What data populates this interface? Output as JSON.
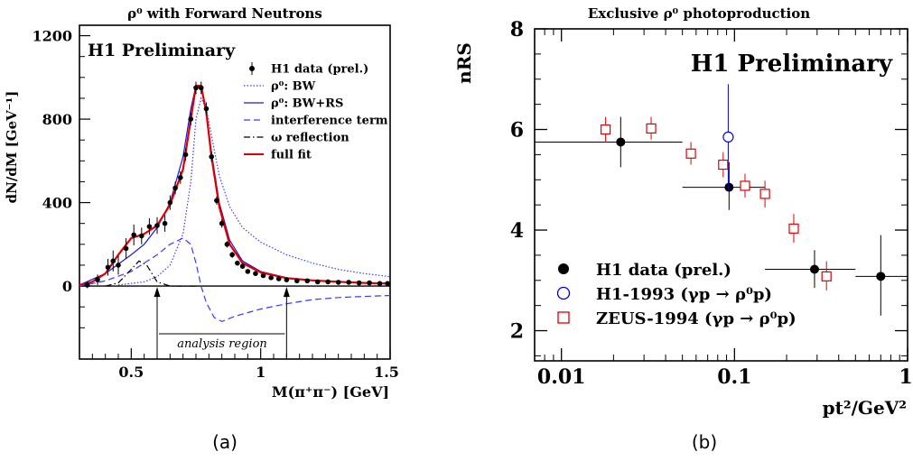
{
  "chart_data": [
    {
      "panel_label": "(a)",
      "type": "line",
      "title": "ρ⁰ with  Forward  Neutrons",
      "watermark": "H1 Preliminary",
      "xlabel": "M(π⁺π⁻) [GeV]",
      "ylabel": "dN/dM [GeV⁻¹]",
      "xlim": [
        0.3,
        1.5
      ],
      "ylim": [
        -350,
        1250
      ],
      "xticks": [
        0.5,
        1,
        1.5
      ],
      "xtick_labels": [
        "0.5",
        "1",
        "1.5"
      ],
      "yticks": [
        0,
        400,
        800,
        1200
      ],
      "ytick_labels": [
        "0",
        "400",
        "800",
        "1200"
      ],
      "annotation": "analysis region",
      "analysis_region": [
        0.6,
        1.1
      ],
      "legend_position": "top-right",
      "data_series": {
        "name": "H1 data (prel.)",
        "points": [
          {
            "x": 0.33,
            "y": 5,
            "err": 15
          },
          {
            "x": 0.37,
            "y": 30,
            "err": 25
          },
          {
            "x": 0.41,
            "y": 90,
            "err": 40
          },
          {
            "x": 0.43,
            "y": 120,
            "err": 50
          },
          {
            "x": 0.45,
            "y": 100,
            "err": 45
          },
          {
            "x": 0.48,
            "y": 180,
            "err": 50
          },
          {
            "x": 0.51,
            "y": 245,
            "err": 50
          },
          {
            "x": 0.54,
            "y": 240,
            "err": 40
          },
          {
            "x": 0.57,
            "y": 285,
            "err": 40
          },
          {
            "x": 0.6,
            "y": 290,
            "err": 40
          },
          {
            "x": 0.63,
            "y": 300,
            "err": 40
          },
          {
            "x": 0.65,
            "y": 400,
            "err": 35
          },
          {
            "x": 0.67,
            "y": 470,
            "err": 30
          },
          {
            "x": 0.69,
            "y": 520,
            "err": 30
          },
          {
            "x": 0.71,
            "y": 630,
            "err": 30
          },
          {
            "x": 0.73,
            "y": 800,
            "err": 30
          },
          {
            "x": 0.75,
            "y": 950,
            "err": 30
          },
          {
            "x": 0.77,
            "y": 950,
            "err": 30
          },
          {
            "x": 0.79,
            "y": 850,
            "err": 30
          },
          {
            "x": 0.81,
            "y": 620,
            "err": 25
          },
          {
            "x": 0.83,
            "y": 410,
            "err": 20
          },
          {
            "x": 0.85,
            "y": 300,
            "err": 20
          },
          {
            "x": 0.87,
            "y": 200,
            "err": 15
          },
          {
            "x": 0.89,
            "y": 150,
            "err": 15
          },
          {
            "x": 0.91,
            "y": 110,
            "err": 12
          },
          {
            "x": 0.93,
            "y": 95,
            "err": 12
          },
          {
            "x": 0.95,
            "y": 70,
            "err": 10
          },
          {
            "x": 0.98,
            "y": 60,
            "err": 10
          },
          {
            "x": 1.01,
            "y": 50,
            "err": 10
          },
          {
            "x": 1.04,
            "y": 40,
            "err": 8
          },
          {
            "x": 1.07,
            "y": 35,
            "err": 8
          },
          {
            "x": 1.1,
            "y": 30,
            "err": 8
          },
          {
            "x": 1.14,
            "y": 25,
            "err": 8
          },
          {
            "x": 1.18,
            "y": 25,
            "err": 8
          },
          {
            "x": 1.22,
            "y": 20,
            "err": 8
          },
          {
            "x": 1.26,
            "y": 20,
            "err": 8
          },
          {
            "x": 1.3,
            "y": 18,
            "err": 8
          },
          {
            "x": 1.34,
            "y": 18,
            "err": 8
          },
          {
            "x": 1.38,
            "y": 15,
            "err": 8
          },
          {
            "x": 1.42,
            "y": 15,
            "err": 8
          },
          {
            "x": 1.46,
            "y": 12,
            "err": 8
          },
          {
            "x": 1.49,
            "y": 12,
            "err": 8
          }
        ]
      },
      "curves": [
        {
          "name": "ρ⁰: BW",
          "style": "dotted",
          "color": "#3a3aff",
          "points": [
            [
              0.45,
              5
            ],
            [
              0.55,
              20
            ],
            [
              0.6,
              45
            ],
            [
              0.65,
              100
            ],
            [
              0.7,
              250
            ],
            [
              0.73,
              500
            ],
            [
              0.75,
              800
            ],
            [
              0.77,
              900
            ],
            [
              0.79,
              850
            ],
            [
              0.81,
              720
            ],
            [
              0.84,
              530
            ],
            [
              0.88,
              380
            ],
            [
              0.93,
              280
            ],
            [
              1.0,
              210
            ],
            [
              1.1,
              150
            ],
            [
              1.2,
              110
            ],
            [
              1.3,
              80
            ],
            [
              1.4,
              60
            ],
            [
              1.5,
              45
            ]
          ]
        },
        {
          "name": "ρ⁰: BW+RS",
          "style": "solid",
          "color": "#1a1adc",
          "points": [
            [
              0.3,
              5
            ],
            [
              0.4,
              60
            ],
            [
              0.5,
              150
            ],
            [
              0.55,
              200
            ],
            [
              0.6,
              280
            ],
            [
              0.65,
              400
            ],
            [
              0.7,
              620
            ],
            [
              0.73,
              850
            ],
            [
              0.75,
              960
            ],
            [
              0.77,
              950
            ],
            [
              0.79,
              830
            ],
            [
              0.81,
              640
            ],
            [
              0.84,
              400
            ],
            [
              0.88,
              220
            ],
            [
              0.93,
              120
            ],
            [
              1.0,
              70
            ],
            [
              1.1,
              40
            ],
            [
              1.2,
              28
            ],
            [
              1.3,
              20
            ],
            [
              1.4,
              15
            ],
            [
              1.5,
              12
            ]
          ]
        },
        {
          "name": "interference term",
          "style": "dashed",
          "color": "#3a3aff",
          "points": [
            [
              0.3,
              0
            ],
            [
              0.4,
              25
            ],
            [
              0.5,
              70
            ],
            [
              0.6,
              150
            ],
            [
              0.65,
              200
            ],
            [
              0.7,
              230
            ],
            [
              0.73,
              200
            ],
            [
              0.75,
              110
            ],
            [
              0.77,
              0
            ],
            [
              0.79,
              -80
            ],
            [
              0.82,
              -150
            ],
            [
              0.85,
              -170
            ],
            [
              0.9,
              -145
            ],
            [
              1.0,
              -110
            ],
            [
              1.1,
              -85
            ],
            [
              1.2,
              -65
            ],
            [
              1.3,
              -55
            ],
            [
              1.4,
              -50
            ],
            [
              1.5,
              -45
            ]
          ]
        },
        {
          "name": "ω reflection",
          "style": "dashdot",
          "color": "#000000",
          "points": [
            [
              0.4,
              0
            ],
            [
              0.45,
              15
            ],
            [
              0.5,
              80
            ],
            [
              0.53,
              120
            ],
            [
              0.56,
              100
            ],
            [
              0.6,
              20
            ],
            [
              0.65,
              0
            ],
            [
              0.75,
              0
            ]
          ]
        },
        {
          "name": "full fit",
          "style": "solid",
          "color": "#e00000",
          "points": [
            [
              0.3,
              5
            ],
            [
              0.35,
              20
            ],
            [
              0.4,
              60
            ],
            [
              0.45,
              150
            ],
            [
              0.5,
              230
            ],
            [
              0.55,
              250
            ],
            [
              0.6,
              290
            ],
            [
              0.65,
              390
            ],
            [
              0.7,
              560
            ],
            [
              0.73,
              800
            ],
            [
              0.75,
              960
            ],
            [
              0.77,
              960
            ],
            [
              0.79,
              830
            ],
            [
              0.81,
              620
            ],
            [
              0.84,
              380
            ],
            [
              0.88,
              200
            ],
            [
              0.93,
              110
            ],
            [
              1.0,
              65
            ],
            [
              1.1,
              38
            ],
            [
              1.2,
              27
            ],
            [
              1.3,
              20
            ],
            [
              1.4,
              15
            ],
            [
              1.5,
              12
            ]
          ]
        }
      ]
    },
    {
      "panel_label": "(b)",
      "type": "scatter",
      "title": "Exclusive  ρ⁰ photoproduction",
      "watermark": "H1 Preliminary",
      "xlabel": "pt²/GeV²",
      "ylabel": "nRS",
      "xscale": "log",
      "xlim": [
        0.007,
        1
      ],
      "ylim": [
        1.4,
        8
      ],
      "xtick_labels": [
        "0.01",
        "0.1",
        "1"
      ],
      "ytick_labels": [
        "2",
        "4",
        "6",
        "8"
      ],
      "legend_position": "bottom-left",
      "series": [
        {
          "name": "H1 data (prel.)",
          "marker": "filled-circle",
          "color": "#000000",
          "points": [
            {
              "x": 0.022,
              "y": 5.75,
              "xlo": 0.007,
              "xhi": 0.05,
              "ylo": 5.25,
              "yhi": 6.25
            },
            {
              "x": 0.093,
              "y": 4.85,
              "xlo": 0.05,
              "xhi": 0.15,
              "ylo": 4.4,
              "yhi": 5.35
            },
            {
              "x": 0.29,
              "y": 3.22,
              "xlo": 0.15,
              "xhi": 0.5,
              "ylo": 2.85,
              "yhi": 3.6
            },
            {
              "x": 0.7,
              "y": 3.08,
              "xlo": 0.5,
              "xhi": 1.0,
              "ylo": 2.3,
              "yhi": 3.9
            }
          ]
        },
        {
          "name": "H1-1993 (γp → ρ⁰p)",
          "marker": "open-circle",
          "color": "#0000cc",
          "points": [
            {
              "x": 0.092,
              "y": 5.85,
              "ylo": 4.8,
              "yhi": 6.9
            }
          ]
        },
        {
          "name": "ZEUS-1994 (γp → ρ⁰p)",
          "marker": "open-square",
          "color": "#e00000",
          "points": [
            {
              "x": 0.018,
              "y": 6.0,
              "ylo": 5.75,
              "yhi": 6.25
            },
            {
              "x": 0.033,
              "y": 6.02,
              "ylo": 5.8,
              "yhi": 6.25
            },
            {
              "x": 0.056,
              "y": 5.52,
              "ylo": 5.3,
              "yhi": 5.75
            },
            {
              "x": 0.086,
              "y": 5.3,
              "ylo": 5.05,
              "yhi": 5.55
            },
            {
              "x": 0.115,
              "y": 4.88,
              "ylo": 4.65,
              "yhi": 5.12
            },
            {
              "x": 0.15,
              "y": 4.72,
              "ylo": 4.45,
              "yhi": 4.98
            },
            {
              "x": 0.22,
              "y": 4.03,
              "ylo": 3.75,
              "yhi": 4.32
            },
            {
              "x": 0.34,
              "y": 3.08,
              "ylo": 2.8,
              "yhi": 3.38
            }
          ]
        }
      ]
    }
  ]
}
